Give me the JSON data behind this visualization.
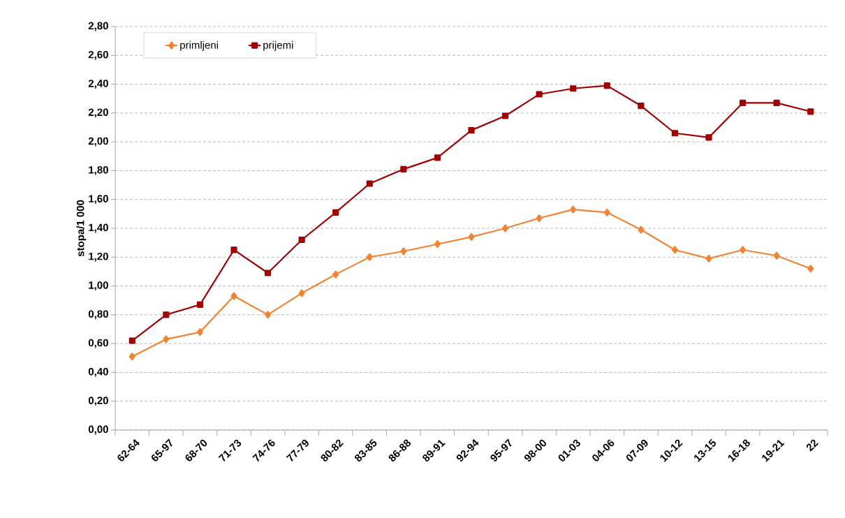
{
  "chart_data": {
    "type": "line",
    "ylabel": "stopa/1 000",
    "categories": [
      "62-64",
      "65-97",
      "68-70",
      "71-73",
      "74-76",
      "77-79",
      "80-82",
      "83-85",
      "86-88",
      "89-91",
      "92-94",
      "95-97",
      "98-00",
      "01-03",
      "04-06",
      "07-09",
      "10-12",
      "13-15",
      "16-18",
      "19-21",
      "22"
    ],
    "series": [
      {
        "name": "primljeni",
        "color": "#f08434",
        "marker": "diamond",
        "values": [
          0.51,
          0.63,
          0.68,
          0.93,
          0.8,
          0.95,
          1.08,
          1.2,
          1.24,
          1.29,
          1.34,
          1.4,
          1.47,
          1.53,
          1.51,
          1.39,
          1.25,
          1.19,
          1.25,
          1.21,
          1.12
        ]
      },
      {
        "name": "prijemi",
        "color": "#a00000",
        "marker": "square",
        "values": [
          0.62,
          0.8,
          0.87,
          1.25,
          1.09,
          1.32,
          1.51,
          1.71,
          1.81,
          1.89,
          2.08,
          2.18,
          2.33,
          2.37,
          2.39,
          2.25,
          2.06,
          2.03,
          2.27,
          2.27,
          2.21
        ]
      }
    ],
    "ylim": [
      0,
      2.8
    ],
    "yticks": [
      {
        "value": 0,
        "label": "0,00"
      },
      {
        "value": 0.2,
        "label": "0,20"
      },
      {
        "value": 0.4,
        "label": "0,40"
      },
      {
        "value": 0.6,
        "label": "0,60"
      },
      {
        "value": 0.8,
        "label": "0,80"
      },
      {
        "value": 1.0,
        "label": "1,00"
      },
      {
        "value": 1.2,
        "label": "1,20"
      },
      {
        "value": 1.4,
        "label": "1,40"
      },
      {
        "value": 1.6,
        "label": "1,60"
      },
      {
        "value": 1.8,
        "label": "1,80"
      },
      {
        "value": 2.0,
        "label": "2,00"
      },
      {
        "value": 2.2,
        "label": "2,20"
      },
      {
        "value": 2.4,
        "label": "2,40"
      },
      {
        "value": 2.6,
        "label": "2,60"
      },
      {
        "value": 2.8,
        "label": "2,80"
      }
    ],
    "grid": "y",
    "legend": "top left",
    "line_style": "solid"
  }
}
